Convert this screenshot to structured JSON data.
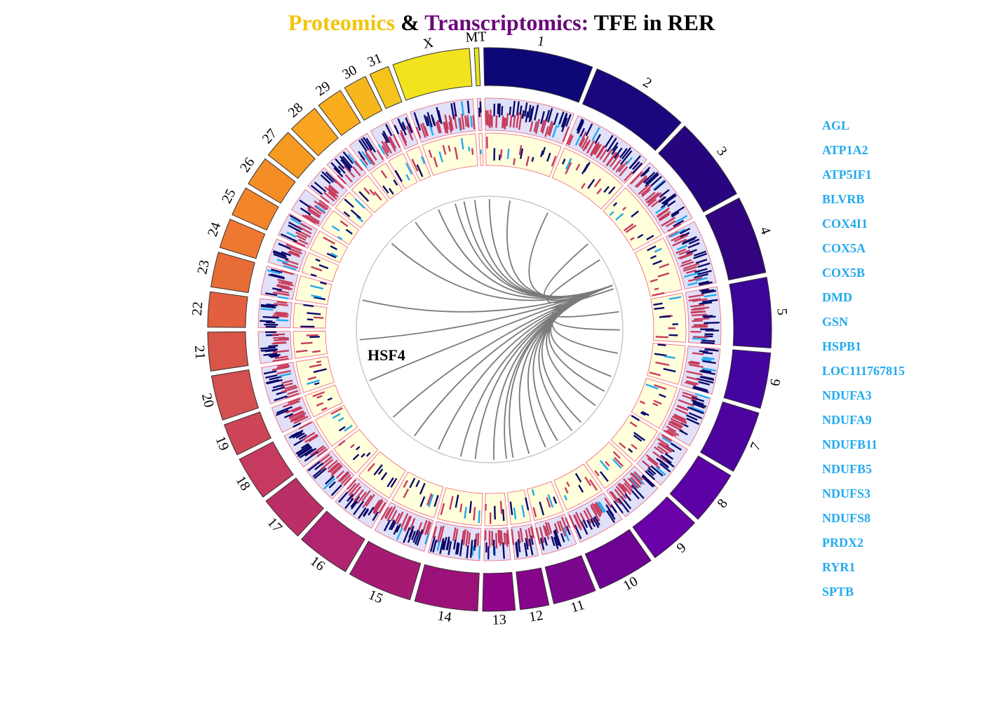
{
  "title": {
    "part1": "Proteomics",
    "sep": " & ",
    "part2": "Transcriptomics:",
    "part3": " TFE in RER",
    "color1": "#f2c40c",
    "color2": "#6a0a78",
    "color3": "#000000"
  },
  "center_label": "HSF4",
  "chromosomes": [
    {
      "name": "1",
      "size": 12.2,
      "color": "#0d0778"
    },
    {
      "name": "2",
      "size": 11.0,
      "color": "#1c067e"
    },
    {
      "name": "3",
      "size": 9.4,
      "color": "#27057f"
    },
    {
      "name": "4",
      "size": 8.7,
      "color": "#32047f"
    },
    {
      "name": "5",
      "size": 7.8,
      "color": "#3b049a"
    },
    {
      "name": "6",
      "size": 6.2,
      "color": "#44049f"
    },
    {
      "name": "7",
      "size": 7.0,
      "color": "#4d049f"
    },
    {
      "name": "8",
      "size": 6.0,
      "color": "#5b01a5"
    },
    {
      "name": "9",
      "size": 5.8,
      "color": "#6a00a8"
    },
    {
      "name": "10",
      "size": 6.4,
      "color": "#6e0292"
    },
    {
      "name": "11",
      "size": 4.8,
      "color": "#7b068e"
    },
    {
      "name": "12",
      "size": 3.2,
      "color": "#850489"
    },
    {
      "name": "13",
      "size": 3.6,
      "color": "#8e0487"
    },
    {
      "name": "14",
      "size": 7.0,
      "color": "#9c1179"
    },
    {
      "name": "15",
      "size": 7.2,
      "color": "#a61a74"
    },
    {
      "name": "16",
      "size": 6.0,
      "color": "#b02470"
    },
    {
      "name": "17",
      "size": 5.2,
      "color": "#bb2f66"
    },
    {
      "name": "18",
      "size": 4.9,
      "color": "#c53a5e"
    },
    {
      "name": "19",
      "size": 3.6,
      "color": "#cd4556"
    },
    {
      "name": "20",
      "size": 5.0,
      "color": "#d44f50"
    },
    {
      "name": "21",
      "size": 4.3,
      "color": "#d95548"
    },
    {
      "name": "22",
      "size": 3.9,
      "color": "#e2603f"
    },
    {
      "name": "23",
      "size": 3.9,
      "color": "#e86c36"
    },
    {
      "name": "24",
      "size": 3.3,
      "color": "#ee7830"
    },
    {
      "name": "25",
      "size": 3.3,
      "color": "#f3852a"
    },
    {
      "name": "26",
      "size": 3.3,
      "color": "#f58d26"
    },
    {
      "name": "27",
      "size": 3.3,
      "color": "#f79a22"
    },
    {
      "name": "28",
      "size": 3.4,
      "color": "#f9a520"
    },
    {
      "name": "29",
      "size": 2.9,
      "color": "#f9ad1d"
    },
    {
      "name": "30",
      "size": 2.6,
      "color": "#f6b71d"
    },
    {
      "name": "31",
      "size": 2.2,
      "color": "#f4c41c"
    },
    {
      "name": "X",
      "size": 8.6,
      "color": "#f1e31d"
    },
    {
      "name": "MT",
      "size": 0.5,
      "color": "#e6e621"
    }
  ],
  "track_colors": {
    "outer_bg": "#e0e0f8",
    "inner_bg": "#ffffdc",
    "border": "#f06070",
    "down": "#0a0a6a",
    "up": "#c83c5c",
    "highlight": "#22aaee",
    "link": "#7a7a7a",
    "center_circle": "#c8c8c8"
  },
  "link_target_chromosome": "4",
  "links": [
    {
      "chr": "1",
      "pos": 0.05
    },
    {
      "chr": "1",
      "pos": 0.45
    },
    {
      "chr": "2",
      "pos": 0.2
    },
    {
      "chr": "3",
      "pos": 0.3
    },
    {
      "chr": "3",
      "pos": 0.8
    },
    {
      "chr": "4",
      "pos": 0.6
    },
    {
      "chr": "5",
      "pos": 0.2
    },
    {
      "chr": "5",
      "pos": 0.75
    },
    {
      "chr": "6",
      "pos": 0.5
    },
    {
      "chr": "7",
      "pos": 0.3
    },
    {
      "chr": "7",
      "pos": 0.85
    },
    {
      "chr": "8",
      "pos": 0.4
    },
    {
      "chr": "9",
      "pos": 0.2
    },
    {
      "chr": "9",
      "pos": 0.7
    },
    {
      "chr": "10",
      "pos": 0.3
    },
    {
      "chr": "10",
      "pos": 0.8
    },
    {
      "chr": "11",
      "pos": 0.5
    },
    {
      "chr": "12",
      "pos": 0.3
    },
    {
      "chr": "12",
      "pos": 0.8
    },
    {
      "chr": "13",
      "pos": 0.5
    },
    {
      "chr": "14",
      "pos": 0.3
    },
    {
      "chr": "14",
      "pos": 0.8
    },
    {
      "chr": "15",
      "pos": 0.5
    },
    {
      "chr": "16",
      "pos": 0.4
    },
    {
      "chr": "17",
      "pos": 0.5
    },
    {
      "chr": "19",
      "pos": 0.5
    },
    {
      "chr": "21",
      "pos": 0.5
    },
    {
      "chr": "23",
      "pos": 0.6
    },
    {
      "chr": "27",
      "pos": 0.5
    },
    {
      "chr": "29",
      "pos": 0.5
    },
    {
      "chr": "31",
      "pos": 0.5
    },
    {
      "chr": "X",
      "pos": 0.55
    },
    {
      "chr": "X",
      "pos": 0.85
    },
    {
      "chr": "X",
      "pos": 0.3
    }
  ],
  "genes": [
    "AGL",
    "ATP1A2",
    "ATP5IF1",
    "BLVRB",
    "COX4I1",
    "COX5A",
    "COX5B",
    "DMD",
    "GSN",
    "HSPB1",
    "LOC111767815",
    "NDUFA3",
    "NDUFA9",
    "NDUFB11",
    "NDUFB5",
    "NDUFS3",
    "NDUFS8",
    "PRDX2",
    "RYR1",
    "SPTB"
  ]
}
